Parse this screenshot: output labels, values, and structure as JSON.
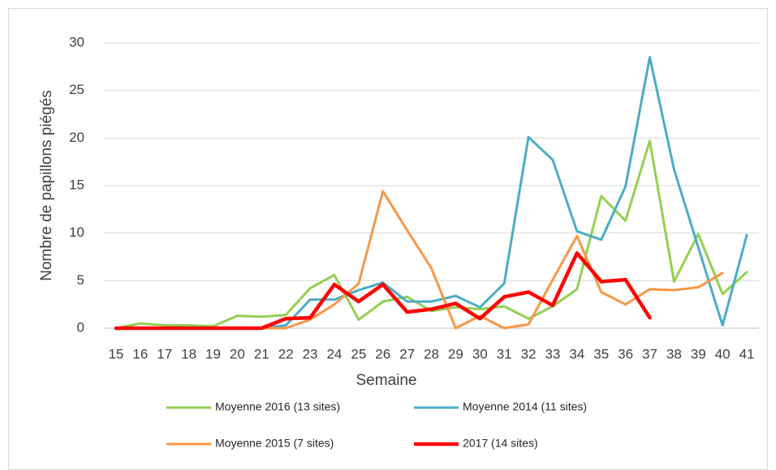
{
  "chart_data": {
    "type": "line",
    "x_label": "Semaine",
    "y_label": "Nombre de papillons piégés",
    "categories": [
      "15",
      "16",
      "17",
      "18",
      "19",
      "20",
      "21",
      "22",
      "23",
      "24",
      "25",
      "26",
      "27",
      "28",
      "29",
      "30",
      "31",
      "32",
      "33",
      "34",
      "35",
      "36",
      "37",
      "38",
      "39",
      "40",
      "41"
    ],
    "series": [
      {
        "name": "Moyenne 2016 (13 sites)",
        "color": "#92d050",
        "values": [
          0,
          0.5,
          0.3,
          0.3,
          0.2,
          1.3,
          1.2,
          1.4,
          4.2,
          5.6,
          0.9,
          2.8,
          3.3,
          1.8,
          2.2,
          2.0,
          2.3,
          1.0,
          2.3,
          4.1,
          13.9,
          11.3,
          19.7,
          4.9,
          9.9,
          3.6,
          5.9
        ]
      },
      {
        "name": "Moyenne 2014 (11 sites)",
        "color": "#4bacc6",
        "values": [
          0,
          0,
          0,
          0,
          0,
          0,
          0,
          0.3,
          3.0,
          3.0,
          4.0,
          4.8,
          2.8,
          2.8,
          3.4,
          2.2,
          4.7,
          20.1,
          17.7,
          10.2,
          9.3,
          14.9,
          28.5,
          16.7,
          8.5,
          0.3,
          9.8
        ]
      },
      {
        "name": "Moyenne 2015 (7 sites)",
        "color": "#f79646",
        "values": [
          0,
          0,
          0,
          0,
          0,
          0,
          0,
          0,
          0.9,
          2.5,
          4.7,
          14.4,
          10.3,
          6.3,
          0,
          1.3,
          0,
          0.4,
          5.1,
          9.7,
          3.8,
          2.5,
          4.1,
          4.0,
          4.3,
          5.8,
          null
        ]
      },
      {
        "name": "2017 (14 sites)",
        "color": "#ff0000",
        "values": [
          0,
          0,
          0,
          0,
          0,
          0,
          0,
          1.0,
          1.1,
          4.6,
          2.8,
          4.6,
          1.7,
          2.0,
          2.6,
          1.0,
          3.3,
          3.8,
          2.4,
          7.9,
          4.9,
          5.1,
          1.1,
          null,
          null,
          null,
          null
        ]
      }
    ],
    "ylim": [
      0,
      30
    ],
    "yticks": [
      0,
      5,
      10,
      15,
      20,
      25,
      30
    ],
    "grid": true
  }
}
